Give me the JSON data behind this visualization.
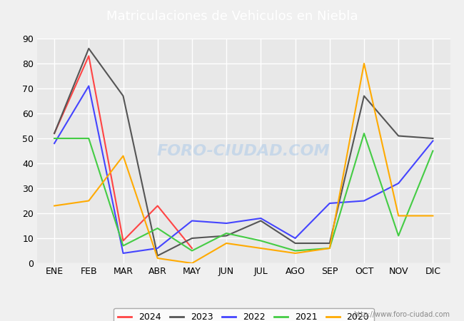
{
  "title": "Matriculaciones de Vehiculos en Niebla",
  "months": [
    "ENE",
    "FEB",
    "MAR",
    "ABR",
    "MAY",
    "JUN",
    "JUL",
    "AGO",
    "SEP",
    "OCT",
    "NOV",
    "DIC"
  ],
  "series": {
    "2024": [
      52,
      83,
      9,
      23,
      6,
      null,
      null,
      null,
      null,
      null,
      null,
      null
    ],
    "2023": [
      52,
      86,
      67,
      3,
      10,
      11,
      17,
      8,
      8,
      67,
      51,
      50
    ],
    "2022": [
      48,
      71,
      4,
      6,
      17,
      16,
      18,
      10,
      24,
      25,
      32,
      49
    ],
    "2021": [
      50,
      50,
      7,
      14,
      5,
      12,
      9,
      5,
      6,
      52,
      11,
      45
    ],
    "2020": [
      23,
      25,
      43,
      2,
      0,
      8,
      6,
      4,
      6,
      80,
      19,
      19
    ]
  },
  "colors": {
    "2024": "#ff4444",
    "2023": "#555555",
    "2022": "#4444ff",
    "2021": "#44cc44",
    "2020": "#ffaa00"
  },
  "ylim": [
    0,
    90
  ],
  "yticks": [
    0,
    10,
    20,
    30,
    40,
    50,
    60,
    70,
    80,
    90
  ],
  "background_color": "#f0f0f0",
  "plot_bg_color": "#e8e8e8",
  "title_bg_color": "#5599cc",
  "title_color": "#ffffff",
  "grid_color": "#ffffff",
  "watermark": "FORO-CIUDAD.COM",
  "url": "http://www.foro-ciudad.com"
}
